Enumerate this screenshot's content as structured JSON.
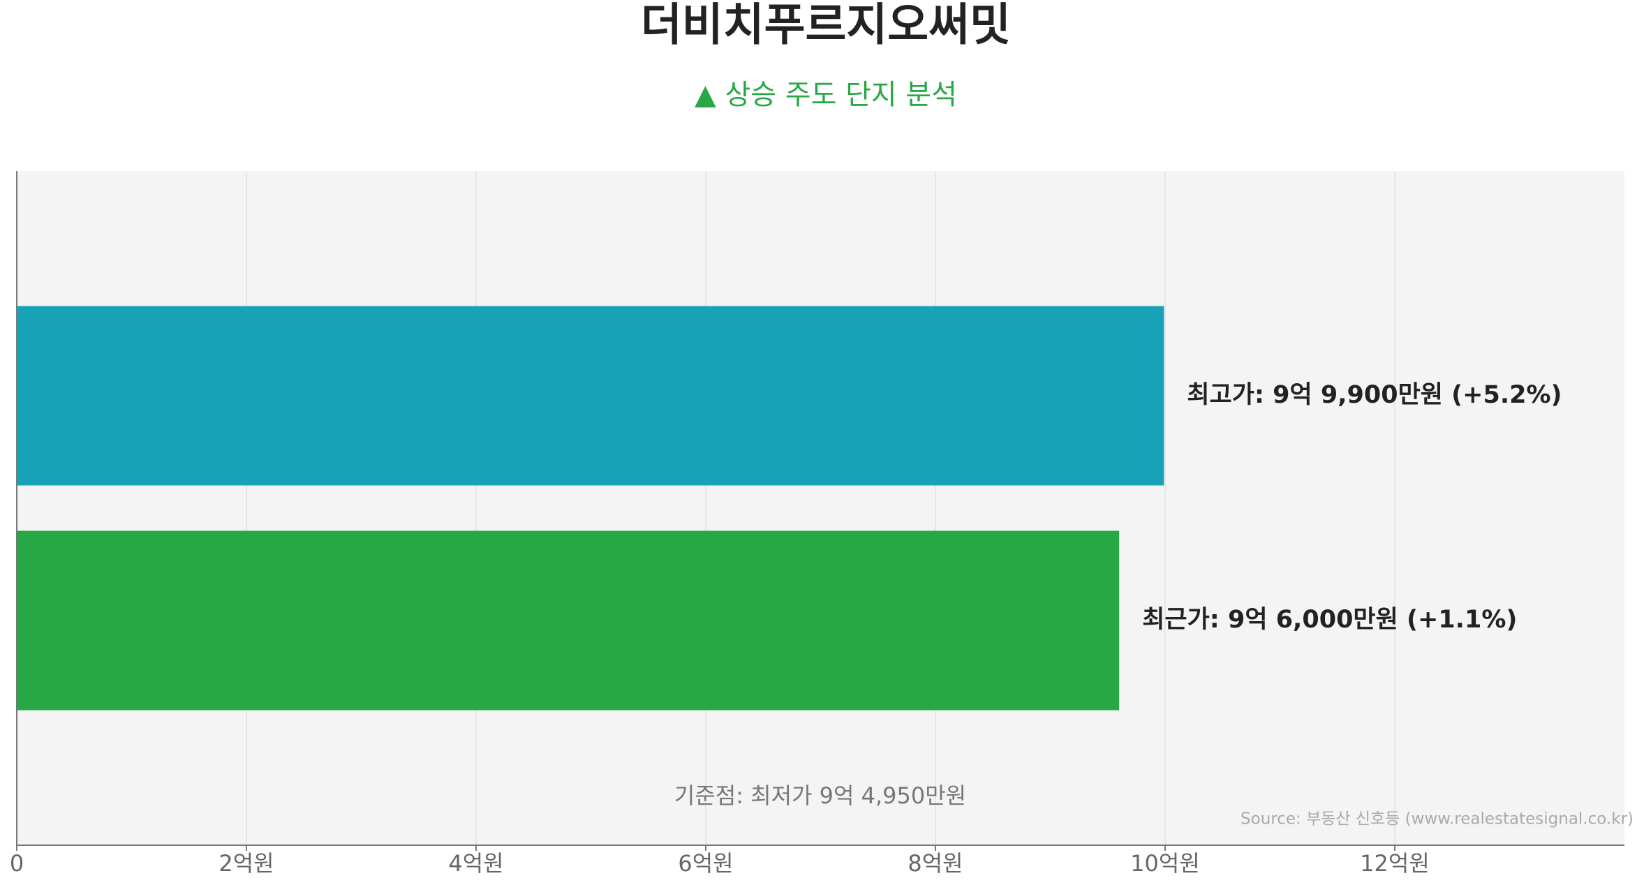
{
  "chart_data": {
    "type": "bar",
    "orientation": "horizontal",
    "title": "더비치푸르지오써밋",
    "subtitle": "▲ 상승 주도 단지 분석",
    "categories": [
      null,
      null
    ],
    "values": [
      9.99,
      9.6
    ],
    "value_labels": [
      "최고가: 9억 9,900만원 (+5.2%)",
      "최근가: 9억 6,000만원 (+1.1%)"
    ],
    "colors": [
      "#17a2b8",
      "#28a745"
    ],
    "xlim": [
      0,
      14
    ],
    "xticks": [
      0,
      {
        "value": 2,
        "label": "2억원"
      },
      {
        "value": 4,
        "label": "4억원"
      },
      {
        "value": 6,
        "label": "6억원"
      },
      {
        "value": 8,
        "label": "8억원"
      },
      {
        "value": 10,
        "label": "10억원"
      },
      {
        "value": 12,
        "label": "12억원"
      }
    ],
    "grid": true,
    "annotation": "기준점: 최저가 9억 4,950만원",
    "source": "Source: 부동산 신호등 (www.realestatesignal.co.kr)"
  }
}
